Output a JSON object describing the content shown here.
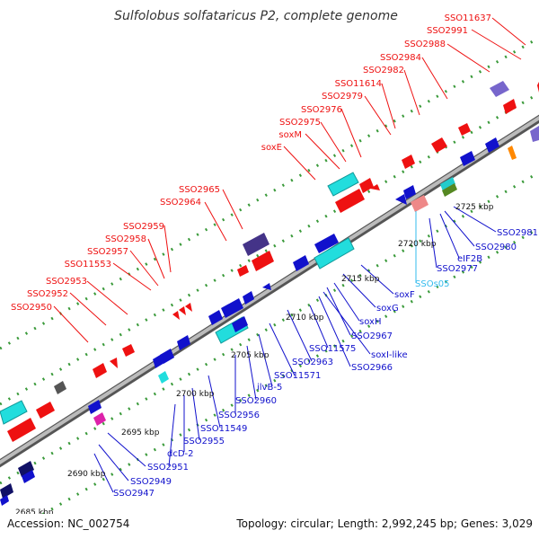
{
  "title": "Sulfolobus solfataricus P2, complete genome",
  "footer": {
    "accession": "Accession: NC_002754",
    "summary": "Topology: circular; Length: 2,992,245 bp; Genes: 3,029"
  },
  "colors": {
    "forward": "#ee1111",
    "reverse": "#1111cc",
    "rna": "#33bbee",
    "backbone": "#888888"
  },
  "scale_labels": [
    "2685 kbp",
    "2690 kbp",
    "2695 kbp",
    "2700 kbp",
    "2705 kbp",
    "2710 kbp",
    "2715 kbp",
    "2720 kbp",
    "2725 kbp"
  ],
  "forward_genes": [
    "SSO11637",
    "SSO2991",
    "SSO2988",
    "SSO2984",
    "SSO2982",
    "SSO11614",
    "SSO2979",
    "SSO2976",
    "SSO2975",
    "soxM",
    "soxE",
    "SSO2965",
    "SSO2964",
    "SSO2959",
    "SSO2958",
    "SSO2957",
    "SSO11553",
    "SSO2953",
    "SSO2952",
    "SSO2950"
  ],
  "reverse_genes": [
    "SSO2981",
    "SSO2980",
    "eIF2B",
    "SSO2977",
    "SSOs05",
    "soxF",
    "soxG",
    "soxH",
    "SSO2967",
    "soxI-like",
    "SSO2966",
    "SSO11575",
    "SSO2963",
    "SSO11571",
    "ilvB-5",
    "SSO2960",
    "SSO2956",
    "SSO11549",
    "SSO2955",
    "dcD-2",
    "SSO2951",
    "SSO2949",
    "SSO2947"
  ]
}
